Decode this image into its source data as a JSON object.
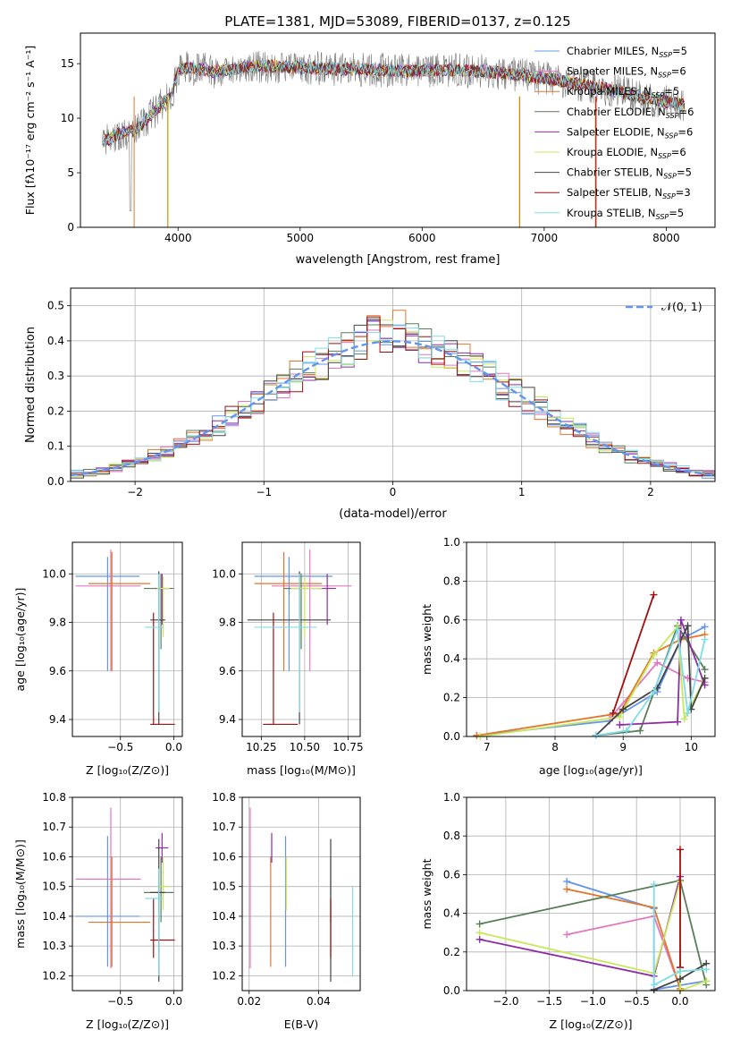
{
  "chart_data": [
    {
      "id": "spectrum",
      "type": "line",
      "title": "PLATE=1381, MJD=53089, FIBERID=0137, z=0.125",
      "xlabel": "wavelength [Angstrom, rest frame]",
      "ylabel": "Flux [f_λ10^-17 erg cm^-2 s^-1 A^-1]",
      "xlim": [
        3200,
        8400
      ],
      "ylim": [
        0,
        17.8
      ],
      "xticks": [
        4000,
        5000,
        6000,
        7000,
        8000
      ],
      "yticks": [
        0,
        5,
        10,
        15
      ],
      "grid": false,
      "legend_position": "top-right",
      "continuum": {
        "x": [
          3380,
          3500,
          3650,
          3800,
          3950,
          4000,
          4100,
          4300,
          4500,
          4700,
          4900,
          5100,
          5300,
          5500,
          5700,
          5900,
          6100,
          6300,
          6500,
          6700,
          6900,
          7100,
          7300,
          7500,
          7700,
          7900,
          8150
        ],
        "y": [
          7.8,
          8.5,
          8.9,
          10.5,
          12.2,
          14.4,
          14.6,
          14.3,
          14.6,
          14.8,
          14.7,
          14.6,
          14.5,
          14.5,
          14.4,
          14.3,
          14.4,
          14.4,
          14.3,
          14.1,
          13.8,
          13.5,
          13.1,
          12.7,
          12.2,
          11.7,
          11.2
        ]
      },
      "series": [
        {
          "label": "Chabrier MILES, N",
          "sub": "SSP",
          "eq": "=5",
          "color": "#6495ed"
        },
        {
          "label": "Salpeter MILES, N",
          "sub": "SSP",
          "eq": "=6",
          "color": "#e377c2"
        },
        {
          "label": "Kroupa MILES, N",
          "sub": "SSP",
          "eq": "=5",
          "color": "#e3762d"
        },
        {
          "label": "Chabrier ELODIE, N",
          "sub": "SSP",
          "eq": "=6",
          "color": "#5a7d5a"
        },
        {
          "label": "Salpeter ELODIE, N",
          "sub": "SSP",
          "eq": "=6",
          "color": "#8e2ca4"
        },
        {
          "label": "Kroupa ELODIE, N",
          "sub": "SSP",
          "eq": "=6",
          "color": "#c8e85a"
        },
        {
          "label": "Chabrier STELIB, N",
          "sub": "SSP",
          "eq": "=5",
          "color": "#444444"
        },
        {
          "label": "Salpeter STELIB, N",
          "sub": "SSP",
          "eq": "=3",
          "color": "#a01010"
        },
        {
          "label": "Kroupa STELIB, N",
          "sub": "SSP",
          "eq": "=5",
          "color": "#80dce6"
        }
      ]
    },
    {
      "id": "residuals",
      "type": "line",
      "xlabel": "(data-model)/error",
      "ylabel": "Normed distribution",
      "xlim": [
        -2.5,
        2.5
      ],
      "ylim": [
        0,
        0.55
      ],
      "xticks": [
        -2,
        -1,
        0,
        1,
        2
      ],
      "yticks": [
        0.0,
        0.1,
        0.2,
        0.3,
        0.4,
        0.5
      ],
      "grid": true,
      "legend_position": "top-right",
      "reference_curve": {
        "label": "𝒩(0, 1)",
        "mean": 0,
        "sigma": 1,
        "color": "#6495ed"
      },
      "bin_width": 0.1
    },
    {
      "id": "age_vs_Z",
      "type": "scatter",
      "xlabel": "Z [log₁₀(Z/Z⊙)]",
      "ylabel": "age  [log₁₀(age/yr)]",
      "xlim": [
        -0.95,
        0.08
      ],
      "ylim": [
        9.33,
        10.13
      ],
      "xticks": [
        -0.5,
        0.0
      ],
      "xticklabels": [
        "−0.5",
        "0.0"
      ],
      "yticks": [
        9.4,
        9.6,
        9.8,
        10.0
      ],
      "grid": true,
      "points": [
        {
          "x": -0.62,
          "y": 9.99,
          "xerr": [
            0.3,
            0.3
          ],
          "yerr": [
            0.39,
            0.08
          ],
          "color": "#6495ed"
        },
        {
          "x": -0.59,
          "y": 9.95,
          "xerr": [
            0.33,
            0.28
          ],
          "yerr": [
            0.35,
            0.15
          ],
          "color": "#e377c2"
        },
        {
          "x": -0.58,
          "y": 9.96,
          "xerr": [
            0.22,
            0.36
          ],
          "yerr": [
            0.36,
            0.13
          ],
          "color": "#e3762d"
        },
        {
          "x": -0.12,
          "y": 9.94,
          "xerr": [
            0.16,
            0.12
          ],
          "yerr": [
            0.25,
            0.06
          ],
          "color": "#5a7d5a"
        },
        {
          "x": -0.11,
          "y": 9.94,
          "xerr": [
            0.06,
            0.06
          ],
          "yerr": [
            0.15,
            0.06
          ],
          "color": "#8e2ca4"
        },
        {
          "x": -0.1,
          "y": 9.94,
          "xerr": [
            0.06,
            0.06
          ],
          "yerr": [
            0.2,
            0.05
          ],
          "color": "#c8e85a"
        },
        {
          "x": -0.14,
          "y": 9.81,
          "xerr": [
            0.08,
            0.06
          ],
          "yerr": [
            0.43,
            0.2
          ],
          "color": "#444444"
        },
        {
          "x": -0.19,
          "y": 9.38,
          "xerr": [
            0.03,
            0.2
          ],
          "yerr": [
            0.0,
            0.46
          ],
          "color": "#a01010"
        },
        {
          "x": -0.14,
          "y": 9.78,
          "xerr": [
            0.13,
            0.04
          ],
          "yerr": [
            0.35,
            0.22
          ],
          "color": "#80dce6"
        }
      ]
    },
    {
      "id": "age_vs_mass",
      "type": "scatter",
      "xlabel": "mass [log₁₀(M/M⊙)]",
      "xlim": [
        10.14,
        10.82
      ],
      "ylim": [
        9.33,
        10.13
      ],
      "xticks": [
        10.25,
        10.5,
        10.75
      ],
      "xticklabels": [
        "10.25",
        "10.50",
        "10.75"
      ],
      "yticks": [
        9.4,
        9.6,
        9.8,
        10.0
      ],
      "grid": true,
      "points": [
        {
          "x": 10.41,
          "y": 9.99,
          "xerr": [
            0.2,
            0.25
          ],
          "yerr": [
            0.39,
            0.08
          ],
          "color": "#6495ed"
        },
        {
          "x": 10.53,
          "y": 9.95,
          "xerr": [
            0.22,
            0.24
          ],
          "yerr": [
            0.35,
            0.15
          ],
          "color": "#e377c2"
        },
        {
          "x": 10.38,
          "y": 9.96,
          "xerr": [
            0.17,
            0.22
          ],
          "yerr": [
            0.36,
            0.13
          ],
          "color": "#e3762d"
        },
        {
          "x": 10.48,
          "y": 9.94,
          "xerr": [
            0.1,
            0.12
          ],
          "yerr": [
            0.25,
            0.06
          ],
          "color": "#5a7d5a"
        },
        {
          "x": 10.63,
          "y": 9.94,
          "xerr": [
            0.05,
            0.05
          ],
          "yerr": [
            0.15,
            0.06
          ],
          "color": "#8e2ca4"
        },
        {
          "x": 10.5,
          "y": 9.94,
          "xerr": [
            0.08,
            0.1
          ],
          "yerr": [
            0.2,
            0.05
          ],
          "color": "#c8e85a"
        },
        {
          "x": 10.47,
          "y": 9.81,
          "xerr": [
            0.3,
            0.18
          ],
          "yerr": [
            0.43,
            0.2
          ],
          "color": "#444444"
        },
        {
          "x": 10.32,
          "y": 9.38,
          "xerr": [
            0.06,
            0.14
          ],
          "yerr": [
            0.0,
            0.46
          ],
          "color": "#a01010"
        },
        {
          "x": 10.47,
          "y": 9.78,
          "xerr": [
            0.26,
            0.1
          ],
          "yerr": [
            0.35,
            0.22
          ],
          "color": "#80dce6"
        }
      ]
    },
    {
      "id": "weight_vs_age",
      "type": "line",
      "xlabel": "age  [log₁₀(age/yr)]",
      "ylabel": "mass weight",
      "xlim": [
        6.7,
        10.35
      ],
      "ylim": [
        0,
        1.0
      ],
      "xticks": [
        7,
        8,
        9,
        10
      ],
      "yticks": [
        0.0,
        0.2,
        0.4,
        0.6,
        0.8,
        1.0
      ],
      "grid": true,
      "series": [
        {
          "color": "#6495ed",
          "x": [
            6.85,
            8.8,
            9.5,
            9.85,
            10.2
          ],
          "y": [
            0.005,
            0.08,
            0.23,
            0.5,
            0.565
          ]
        },
        {
          "color": "#e377c2",
          "x": [
            8.8,
            9.5,
            9.95,
            10.2
          ],
          "y": [
            0.09,
            0.38,
            0.3,
            0.28
          ]
        },
        {
          "color": "#e3762d",
          "x": [
            6.85,
            8.95,
            9.45,
            9.85,
            10.2
          ],
          "y": [
            0.005,
            0.12,
            0.43,
            0.5,
            0.525
          ]
        },
        {
          "color": "#5a7d5a",
          "x": [
            8.6,
            9.25,
            9.8,
            10.2
          ],
          "y": [
            0.005,
            0.03,
            0.57,
            0.345
          ]
        },
        {
          "color": "#8e2ca4",
          "x": [
            8.95,
            9.8,
            9.85,
            10.2
          ],
          "y": [
            0.06,
            0.075,
            0.6,
            0.265
          ]
        },
        {
          "color": "#c8e85a",
          "x": [
            6.9,
            8.95,
            9.45,
            9.8,
            9.9,
            10.2
          ],
          "y": [
            0.0,
            0.1,
            0.42,
            0.565,
            0.09,
            0.3
          ]
        },
        {
          "color": "#444444",
          "x": [
            8.6,
            9.0,
            9.5,
            9.95,
            10.0,
            10.2
          ],
          "y": [
            0.005,
            0.14,
            0.25,
            0.57,
            0.14,
            0.3
          ]
        },
        {
          "color": "#a01010",
          "x": [
            8.85,
            9.45
          ],
          "y": [
            0.12,
            0.73
          ]
        },
        {
          "color": "#80dce6",
          "x": [
            8.6,
            9.05,
            9.45,
            9.8,
            9.95,
            10.2
          ],
          "y": [
            0.005,
            0.03,
            0.23,
            0.55,
            0.12,
            0.5
          ]
        }
      ]
    },
    {
      "id": "mass_vs_Z",
      "type": "scatter",
      "xlabel": "Z [log₁₀(Z/Z⊙)]",
      "ylabel": "mass [log₁₀(M/M⊙)]",
      "xlim": [
        -0.95,
        0.08
      ],
      "ylim": [
        10.15,
        10.8
      ],
      "xticks": [
        -0.5,
        0.0
      ],
      "xticklabels": [
        "−0.5",
        "0.0"
      ],
      "yticks": [
        10.2,
        10.3,
        10.4,
        10.5,
        10.6,
        10.7,
        10.8
      ],
      "grid": true,
      "points": [
        {
          "x": -0.62,
          "y": 10.4,
          "xerr": [
            0.3,
            0.3
          ],
          "yerr": [
            0.17,
            0.27
          ],
          "color": "#6495ed"
        },
        {
          "x": -0.59,
          "y": 10.525,
          "xerr": [
            0.33,
            0.28
          ],
          "yerr": [
            0.3,
            0.24
          ],
          "color": "#e377c2"
        },
        {
          "x": -0.58,
          "y": 10.38,
          "xerr": [
            0.22,
            0.36
          ],
          "yerr": [
            0.15,
            0.22
          ],
          "color": "#e3762d"
        },
        {
          "x": -0.12,
          "y": 10.48,
          "xerr": [
            0.16,
            0.12
          ],
          "yerr": [
            0.1,
            0.12
          ],
          "color": "#5a7d5a"
        },
        {
          "x": -0.11,
          "y": 10.63,
          "xerr": [
            0.06,
            0.06
          ],
          "yerr": [
            0.05,
            0.05
          ],
          "color": "#8e2ca4"
        },
        {
          "x": -0.1,
          "y": 10.5,
          "xerr": [
            0.06,
            0.06
          ],
          "yerr": [
            0.08,
            0.1
          ],
          "color": "#c8e85a"
        },
        {
          "x": -0.14,
          "y": 10.48,
          "xerr": [
            0.08,
            0.06
          ],
          "yerr": [
            0.3,
            0.18
          ],
          "color": "#444444"
        },
        {
          "x": -0.19,
          "y": 10.32,
          "xerr": [
            0.03,
            0.2
          ],
          "yerr": [
            0.06,
            0.14
          ],
          "color": "#a01010"
        },
        {
          "x": -0.14,
          "y": 10.46,
          "xerr": [
            0.13,
            0.04
          ],
          "yerr": [
            0.26,
            0.1
          ],
          "color": "#80dce6"
        }
      ]
    },
    {
      "id": "mass_vs_ebv",
      "type": "scatter",
      "xlabel": "E(B-V)",
      "xlim": [
        0.018,
        0.052
      ],
      "ylim": [
        10.15,
        10.8
      ],
      "xticks": [
        0.02,
        0.04
      ],
      "xticklabels": [
        "0.02",
        "0.04"
      ],
      "yticks": [
        10.2,
        10.3,
        10.4,
        10.5,
        10.6,
        10.7,
        10.8
      ],
      "grid": true,
      "points": [
        {
          "x": 0.0305,
          "y": 10.4,
          "yerr": [
            0.17,
            0.27
          ],
          "color": "#6495ed"
        },
        {
          "x": 0.0203,
          "y": 10.525,
          "yerr": [
            0.3,
            0.24
          ],
          "color": "#e377c2"
        },
        {
          "x": 0.0262,
          "y": 10.38,
          "yerr": [
            0.15,
            0.22
          ],
          "color": "#e3762d"
        },
        {
          "x": 0.0435,
          "y": 10.48,
          "yerr": [
            0.1,
            0.12
          ],
          "color": "#5a7d5a"
        },
        {
          "x": 0.0265,
          "y": 10.63,
          "yerr": [
            0.05,
            0.05
          ],
          "color": "#8e2ca4"
        },
        {
          "x": 0.0307,
          "y": 10.5,
          "yerr": [
            0.08,
            0.1
          ],
          "color": "#c8e85a"
        },
        {
          "x": 0.0435,
          "y": 10.48,
          "yerr": [
            0.3,
            0.18
          ],
          "color": "#444444"
        },
        {
          "x": 0.0435,
          "y": 10.32,
          "yerr": [
            0.06,
            0.14
          ],
          "color": "#a01010"
        },
        {
          "x": 0.0498,
          "y": 10.4,
          "yerr": [
            0.2,
            0.1
          ],
          "color": "#80dce6"
        }
      ]
    },
    {
      "id": "weight_vs_Z",
      "type": "line",
      "xlabel": "Z [log₁₀(Z/Z⊙)]",
      "ylabel": "mass weight",
      "xlim": [
        -2.45,
        0.4
      ],
      "ylim": [
        0,
        1.0
      ],
      "xticks": [
        -2.0,
        -1.5,
        -1.0,
        -0.5,
        0.0
      ],
      "xticklabels": [
        "−2.0",
        "−1.5",
        "−1.0",
        "−0.5",
        "0.0"
      ],
      "yticks": [
        0.0,
        0.2,
        0.4,
        0.6,
        0.8,
        1.0
      ],
      "grid": true,
      "series": [
        {
          "color": "#6495ed",
          "x": [
            -1.3,
            -0.3,
            -0.3,
            0.3
          ],
          "y": [
            0.565,
            0.425,
            0.005,
            0.05
          ]
        },
        {
          "color": "#e377c2",
          "x": [
            -1.3,
            -0.3,
            0.0
          ],
          "y": [
            0.29,
            0.385,
            0.01
          ]
        },
        {
          "color": "#e3762d",
          "x": [
            -1.3,
            -0.3,
            0.0
          ],
          "y": [
            0.525,
            0.43,
            0.01
          ]
        },
        {
          "color": "#5a7d5a",
          "x": [
            -2.3,
            0.0,
            0.3
          ],
          "y": [
            0.345,
            0.57,
            0.03
          ]
        },
        {
          "color": "#8e2ca4",
          "x": [
            -2.3,
            -0.3,
            0.0,
            0.0
          ],
          "y": [
            0.265,
            0.075,
            0.59,
            0.12
          ]
        },
        {
          "color": "#c8e85a",
          "x": [
            -2.3,
            -0.3,
            0.0,
            0.0,
            0.3
          ],
          "y": [
            0.3,
            0.09,
            0.565,
            0.0,
            0.05
          ]
        },
        {
          "color": "#444444",
          "x": [
            -0.3,
            0.0,
            0.3
          ],
          "y": [
            0.005,
            0.06,
            0.14
          ]
        },
        {
          "color": "#a01010",
          "x": [
            0.0,
            0.0
          ],
          "y": [
            0.73,
            0.12
          ]
        },
        {
          "color": "#80dce6",
          "x": [
            -0.3,
            -0.3,
            0.0,
            0.3
          ],
          "y": [
            0.55,
            0.03,
            0.1,
            0.11
          ]
        }
      ]
    }
  ]
}
